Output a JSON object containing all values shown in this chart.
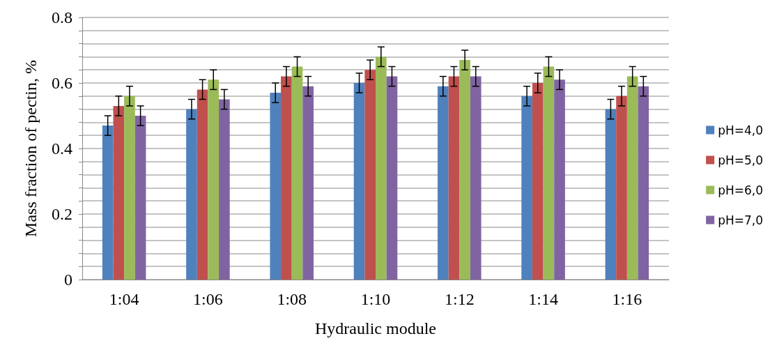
{
  "chart_data": {
    "type": "bar",
    "xlabel": "Hydraulic module",
    "ylabel": "Mass fraction of pectin, %",
    "categories": [
      "1:04",
      "1:06",
      "1:08",
      "1:10",
      "1:12",
      "1:14",
      "1:16"
    ],
    "series": [
      {
        "name": "pH=4,0",
        "color": "#4f81bd",
        "values": [
          0.47,
          0.52,
          0.57,
          0.6,
          0.59,
          0.56,
          0.52
        ],
        "errors": [
          0.03,
          0.03,
          0.03,
          0.03,
          0.03,
          0.03,
          0.03
        ]
      },
      {
        "name": "pH=5,0",
        "color": "#c0504d",
        "values": [
          0.53,
          0.58,
          0.62,
          0.64,
          0.62,
          0.6,
          0.56
        ],
        "errors": [
          0.03,
          0.03,
          0.03,
          0.03,
          0.03,
          0.03,
          0.03
        ]
      },
      {
        "name": "pH=6,0",
        "color": "#9bbb59",
        "values": [
          0.56,
          0.61,
          0.65,
          0.68,
          0.67,
          0.65,
          0.62
        ],
        "errors": [
          0.03,
          0.03,
          0.03,
          0.03,
          0.03,
          0.03,
          0.03
        ]
      },
      {
        "name": "pH=7,0",
        "color": "#8064a2",
        "values": [
          0.5,
          0.55,
          0.59,
          0.62,
          0.62,
          0.61,
          0.59
        ],
        "errors": [
          0.03,
          0.03,
          0.03,
          0.03,
          0.03,
          0.03,
          0.03
        ]
      }
    ],
    "ylim": [
      0,
      0.8
    ],
    "yticks": [
      0,
      {
        "value": 0.04,
        "label": null
      },
      {
        "value": 0.08,
        "label": null
      },
      {
        "value": 0.12,
        "label": null
      },
      {
        "value": 0.16,
        "label": null
      },
      0.2,
      {
        "value": 0.24,
        "label": null
      },
      {
        "value": 0.28,
        "label": null
      },
      {
        "value": 0.32,
        "label": null
      },
      {
        "value": 0.36,
        "label": null
      },
      0.4,
      {
        "value": 0.44,
        "label": null
      },
      {
        "value": 0.48,
        "label": null
      },
      {
        "value": 0.52,
        "label": null
      },
      {
        "value": 0.56,
        "label": null
      },
      0.6,
      {
        "value": 0.64,
        "label": null
      },
      {
        "value": 0.68,
        "label": null
      },
      {
        "value": 0.72,
        "label": null
      },
      {
        "value": 0.76,
        "label": null
      },
      0.8
    ],
    "grid": "y",
    "legend": "right"
  }
}
